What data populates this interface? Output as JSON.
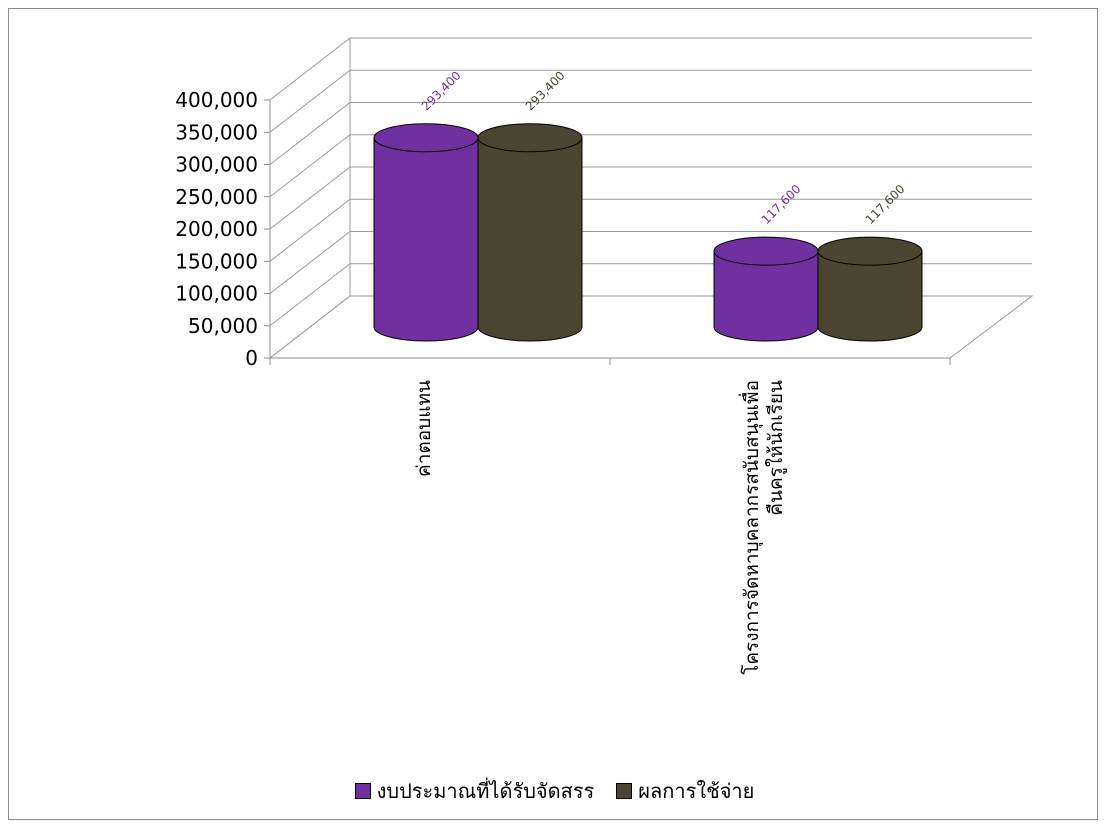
{
  "chart_data": {
    "type": "bar",
    "style": "3d-cylinder",
    "categories": [
      "ค่าตอบแทน",
      "โครงการจัดหาบุคลากรสนับสนุนเพื่อ คืนครูให้นักเรียน"
    ],
    "series": [
      {
        "name": "งบประมาณที่ได้รับจัดสรร",
        "values": [
          293400,
          117600
        ],
        "color": "#7030a0",
        "label_color": "#7030a0"
      },
      {
        "name": "ผลการใช้จ่าย",
        "values": [
          293400,
          117600
        ],
        "color": "#4a4530",
        "label_color": "#4a4530"
      }
    ],
    "data_labels": [
      [
        "293,400",
        "117,600"
      ],
      [
        "293,400",
        "117,600"
      ]
    ],
    "y_ticks": [
      "0",
      "50,000",
      "100,000",
      "150,000",
      "200,000",
      "250,000",
      "300,000",
      "350,000",
      "400,000"
    ],
    "ylim": [
      0,
      400000
    ],
    "ystep": 50000,
    "grid": true,
    "legend_position": "bottom",
    "title": "",
    "xlabel": "",
    "ylabel": ""
  }
}
